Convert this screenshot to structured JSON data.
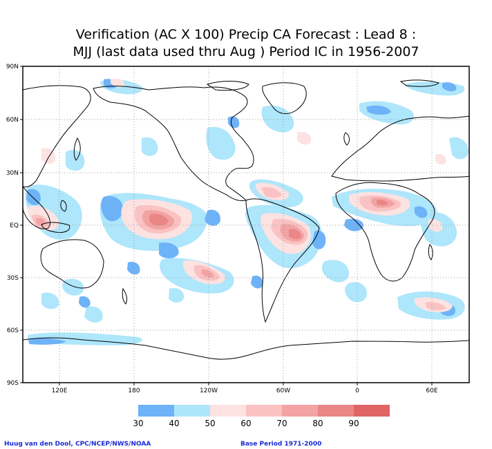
{
  "title_line1": "Verification (AC X 100) Precip CA Forecast : Lead 8 :",
  "title_line2": "MJJ (last data used thru Aug ) Period IC in 1956-2007",
  "lat_labels": [
    "90N",
    "60N",
    "30N",
    "EQ",
    "30S",
    "60S",
    "90S"
  ],
  "lon_labels": [
    "120E",
    "180",
    "120W",
    "60W",
    "0",
    "60E"
  ],
  "legend": {
    "levels": [
      "30",
      "40",
      "50",
      "60",
      "70",
      "80",
      "90"
    ],
    "colors": [
      "#6eb2f8",
      "#aee6fb",
      "#fde2e2",
      "#fac2c2",
      "#f3a3a3",
      "#ea8686",
      "#e06464"
    ]
  },
  "credit_left": "Huug van den Dool, CPC/NCEP/NWS/NOAA",
  "credit_right": "Base Period 1971-2000"
}
